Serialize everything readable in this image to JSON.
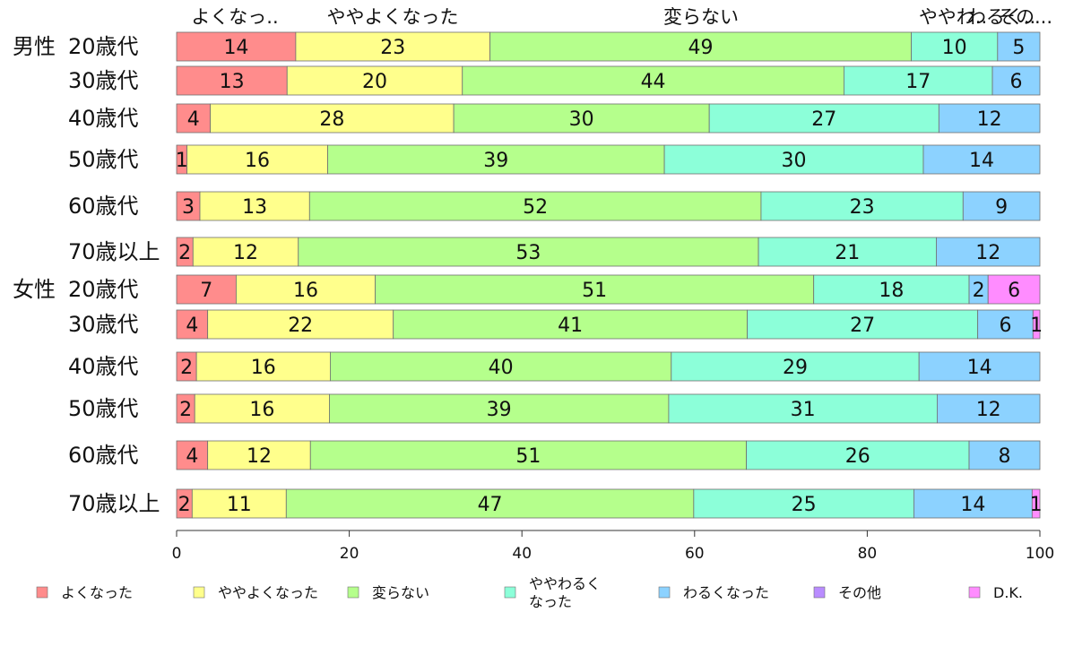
{
  "chart_data": {
    "type": "bar",
    "orientation": "horizontal",
    "stacked": true,
    "xlim": [
      0,
      100
    ],
    "x_ticks": [
      "0",
      "20",
      "40",
      "60",
      "80",
      "100"
    ],
    "top_labels": [
      "よくなっ..",
      "ややよくなった",
      "変らない",
      "ややわ..",
      "わるく..",
      "その..."
    ],
    "groups": [
      {
        "name": "男性",
        "rows": [
          "20歳代",
          "30歳代",
          "40歳代",
          "50歳代",
          "60歳代",
          "70歳以上"
        ]
      },
      {
        "name": "女性",
        "rows": [
          "20歳代",
          "30歳代",
          "40歳代",
          "50歳代",
          "60歳代",
          "70歳以上"
        ]
      }
    ],
    "series": [
      {
        "name": "よくなった",
        "color": "#ff8c8c",
        "values": [
          13.8,
          12.8,
          3.9,
          1.2,
          2.7,
          1.9,
          6.9,
          3.6,
          2.3,
          2.1,
          3.6,
          1.8
        ],
        "labels": [
          "14",
          "13",
          "4",
          "1",
          "3",
          "2",
          "7",
          "4",
          "2",
          "2",
          "4",
          "2"
        ]
      },
      {
        "name": "ややよくなった",
        "color": "#ffff8c",
        "values": [
          22.5,
          20.3,
          28.2,
          16.3,
          12.7,
          12.2,
          16.1,
          21.5,
          15.5,
          15.6,
          11.9,
          10.9
        ],
        "labels": [
          "23",
          "20",
          "28",
          "16",
          "13",
          "12",
          "16",
          "22",
          "16",
          "16",
          "12",
          "11"
        ]
      },
      {
        "name": "変らない",
        "color": "#b5ff8c",
        "values": [
          48.8,
          44.2,
          29.6,
          39.0,
          52.3,
          53.3,
          50.8,
          41.0,
          39.5,
          39.3,
          50.5,
          47.2
        ],
        "labels": [
          "49",
          "44",
          "30",
          "39",
          "52",
          "53",
          "51",
          "41",
          "40",
          "39",
          "51",
          "47"
        ]
      },
      {
        "name": "ややわるくなった",
        "color": "#8cffd9",
        "values": [
          10.0,
          17.2,
          26.6,
          30.0,
          23.4,
          20.6,
          18.0,
          26.7,
          28.7,
          31.1,
          25.8,
          25.5
        ],
        "labels": [
          "10",
          "17",
          "27",
          "30",
          "23",
          "21",
          "18",
          "27",
          "29",
          "31",
          "26",
          "25"
        ]
      },
      {
        "name": "わるくなった",
        "color": "#8cd2ff",
        "values": [
          4.9,
          5.5,
          11.7,
          13.5,
          8.9,
          12.0,
          2.2,
          6.4,
          14.0,
          11.9,
          8.2,
          13.7
        ],
        "labels": [
          "5",
          "6",
          "12",
          "14",
          "9",
          "12",
          "2",
          "6",
          "14",
          "12",
          "8",
          "14"
        ]
      },
      {
        "name": "その他",
        "color": "#b98cff",
        "values": [
          0,
          0,
          0,
          0,
          0,
          0,
          0,
          0,
          0,
          0,
          0,
          0
        ],
        "labels": [
          "",
          "",
          "",
          "",
          "",
          "",
          "",
          "",
          "",
          "",
          "",
          ""
        ]
      },
      {
        "name": "D.K.",
        "color": "#ff8cff",
        "values": [
          0,
          0,
          0,
          0,
          0,
          0,
          6.0,
          0.8,
          0,
          0,
          0,
          0.9
        ],
        "labels": [
          "",
          "",
          "",
          "",
          "",
          "",
          "6",
          "1",
          "",
          "",
          "",
          "1"
        ]
      }
    ],
    "legend": {
      "position": "bottom",
      "items": [
        "よくなった",
        "ややよくなった",
        "変らない",
        "ややわるく\nなった",
        "わるくなった",
        "その他",
        "D.K."
      ]
    },
    "grid": false
  }
}
